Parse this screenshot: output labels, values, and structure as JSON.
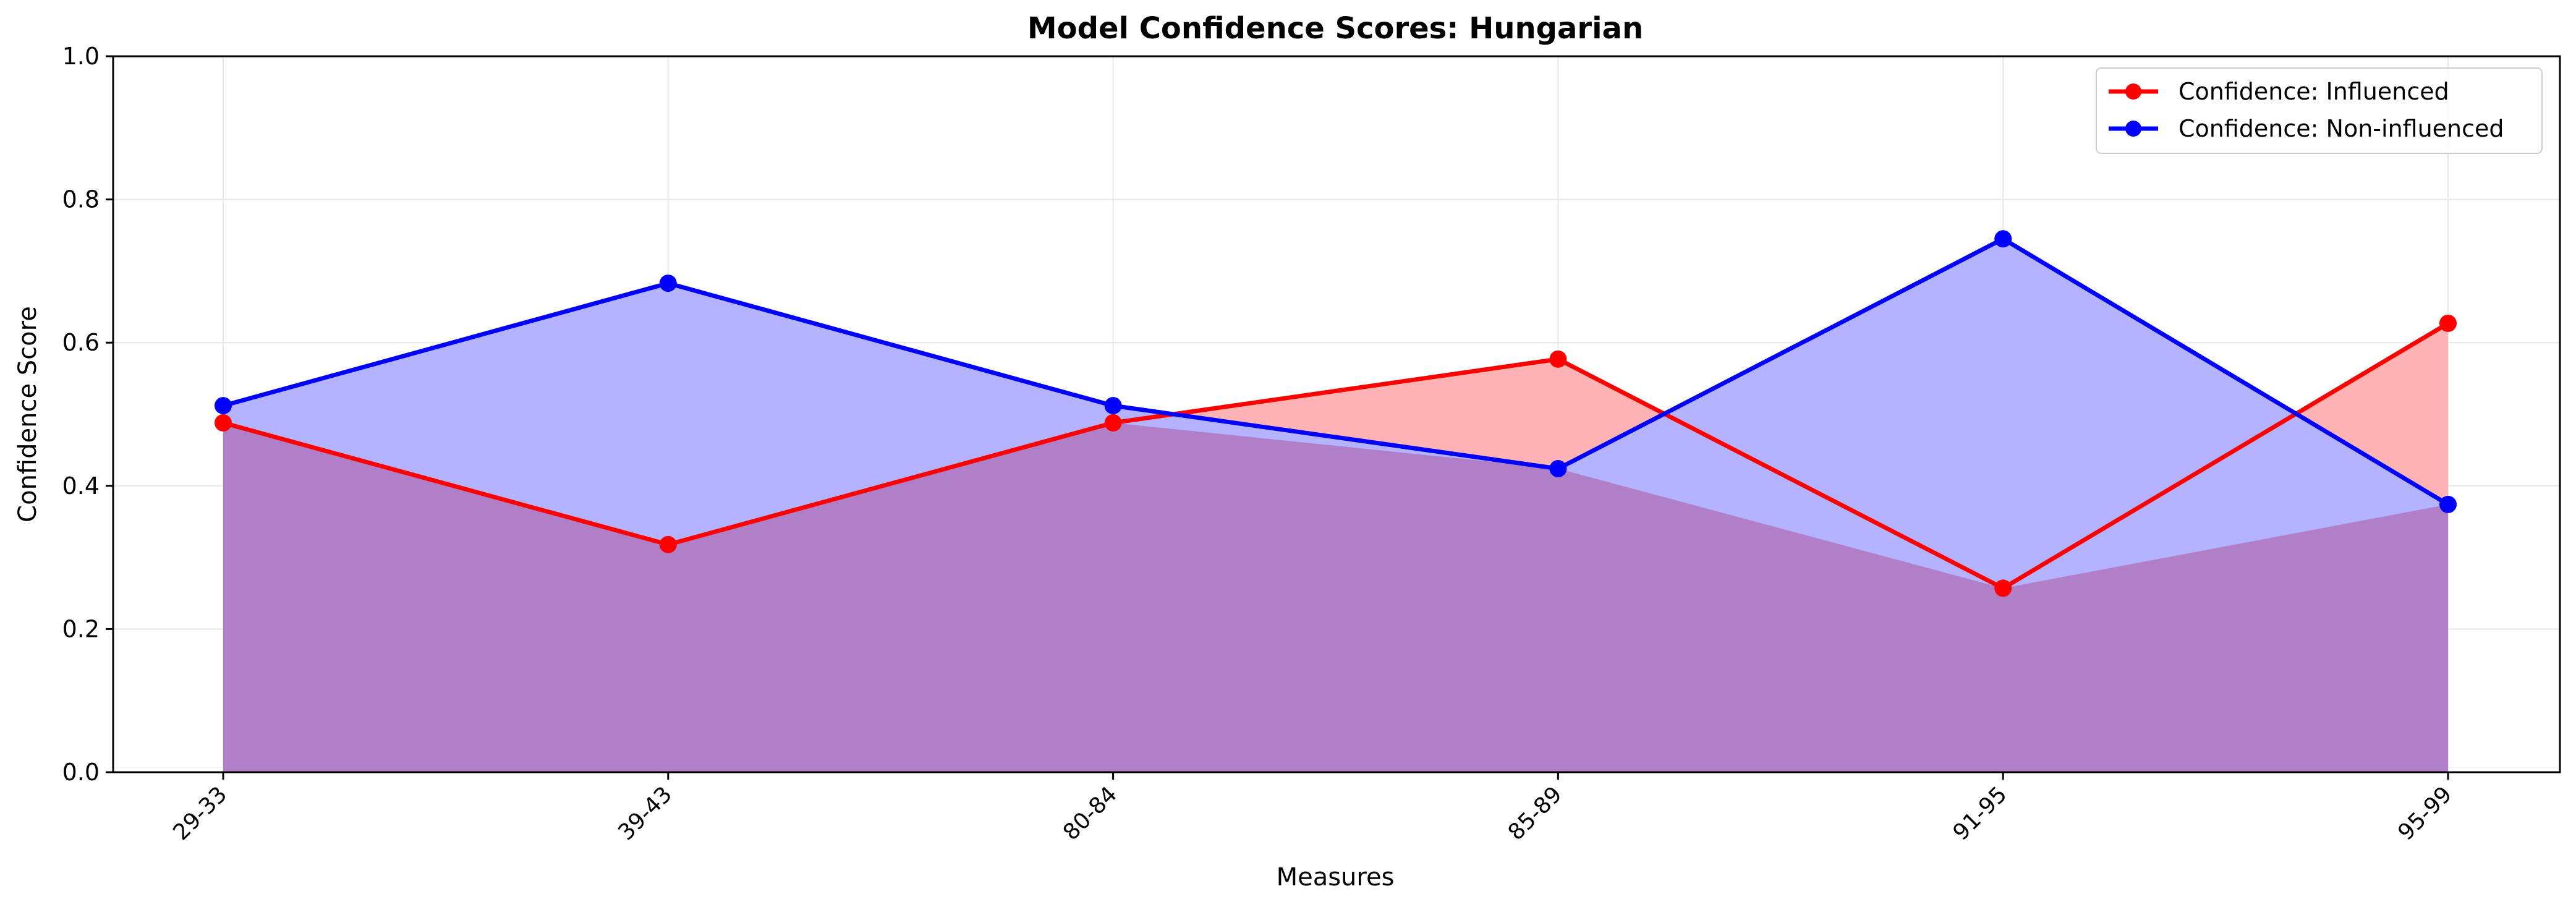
{
  "chart_data": {
    "type": "area",
    "title": "Model Confidence Scores: Hungarian",
    "xlabel": "Measures",
    "ylabel": "Confidence Score",
    "categories": [
      "29-33",
      "39-43",
      "80-84",
      "85-89",
      "91-95",
      "95-99"
    ],
    "ylim": [
      0,
      1.0
    ],
    "yticks": [
      "0.0",
      "0.2",
      "0.4",
      "0.6",
      "0.8",
      "1.0"
    ],
    "grid": true,
    "legend_position": "top-right",
    "series": [
      {
        "name": "Confidence: Influenced",
        "color": "#ff0000",
        "fill": "#ffb3b3",
        "values": [
          0.488,
          0.318,
          0.488,
          0.577,
          0.257,
          0.627
        ]
      },
      {
        "name": "Confidence: Non-influenced",
        "color": "#0000ff",
        "fill": "#b3b3ff",
        "values": [
          0.512,
          0.683,
          0.512,
          0.424,
          0.745,
          0.374
        ]
      }
    ],
    "overlap_fill": "#b07fc8"
  }
}
